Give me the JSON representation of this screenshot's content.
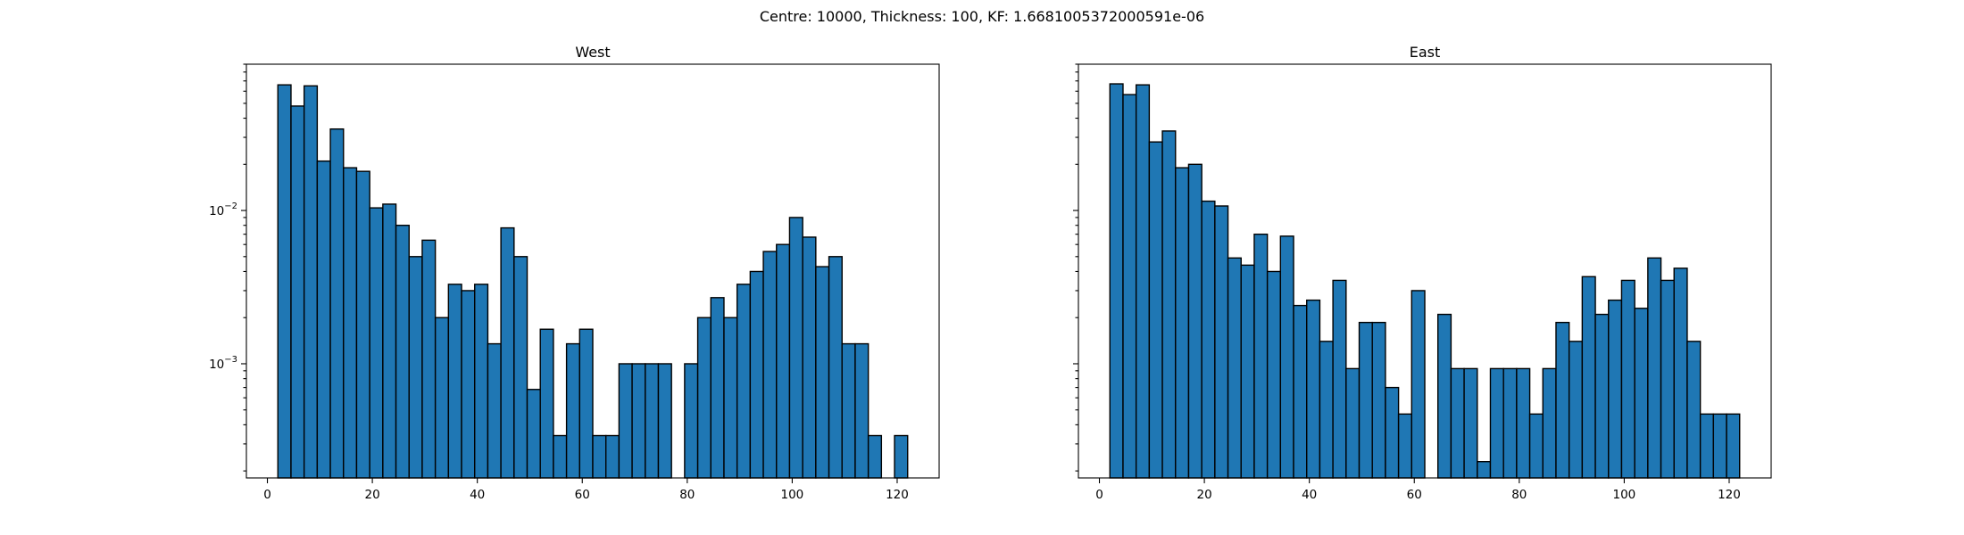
{
  "figure": {
    "suptitle": "Centre: 10000, Thickness: 100, KF: 1.6681005372000591e-06"
  },
  "chart_data": [
    {
      "type": "bar",
      "title": "West",
      "xlabel": "",
      "ylabel": "",
      "yscale": "log",
      "bar_color": "#1f77b4",
      "edge_color": "#000000",
      "bin_width": 2.5,
      "x": [
        3.25,
        5.75,
        8.25,
        10.75,
        13.25,
        15.75,
        18.25,
        20.75,
        23.25,
        25.75,
        28.25,
        30.75,
        33.25,
        35.75,
        38.25,
        40.75,
        43.25,
        45.75,
        48.25,
        50.75,
        53.25,
        55.75,
        58.25,
        60.75,
        63.25,
        65.75,
        68.25,
        70.75,
        73.25,
        75.75,
        78.25,
        80.75,
        83.25,
        85.75,
        88.25,
        90.75,
        93.25,
        95.75,
        98.25,
        100.75,
        103.25,
        105.75,
        108.25,
        110.75,
        113.25,
        115.75,
        118.25,
        120.75
      ],
      "values": [
        0.066,
        0.048,
        0.065,
        0.021,
        0.034,
        0.019,
        0.018,
        0.0104,
        0.011,
        0.008,
        0.005,
        0.0064,
        0.002,
        0.0033,
        0.003,
        0.0033,
        0.00135,
        0.0077,
        0.005,
        0.00068,
        0.00168,
        0.00034,
        0.00135,
        0.00168,
        0.00034,
        0.00034,
        0.001,
        0.001,
        0.001,
        0.001,
        null,
        0.001,
        0.002,
        0.0027,
        0.002,
        0.0033,
        0.004,
        0.0054,
        0.006,
        0.009,
        0.0067,
        0.0043,
        0.005,
        0.00135,
        0.00135,
        0.00034,
        null,
        0.00034
      ],
      "ylim": [
        0.00018,
        0.09
      ],
      "xlim": [
        -4,
        128
      ],
      "xticks": [
        0,
        20,
        40,
        60,
        80,
        100,
        120
      ],
      "xtick_labels": [
        "0",
        "20",
        "40",
        "60",
        "80",
        "100",
        "120"
      ],
      "yticks": [
        0.01,
        0.001
      ],
      "ytick_labels": [
        "10^-2",
        "10^-3"
      ]
    },
    {
      "type": "bar",
      "title": "East",
      "xlabel": "",
      "ylabel": "",
      "yscale": "log",
      "bar_color": "#1f77b4",
      "edge_color": "#000000",
      "bin_width": 2.5,
      "x": [
        3.25,
        5.75,
        8.25,
        10.75,
        13.25,
        15.75,
        18.25,
        20.75,
        23.25,
        25.75,
        28.25,
        30.75,
        33.25,
        35.75,
        38.25,
        40.75,
        43.25,
        45.75,
        48.25,
        50.75,
        53.25,
        55.75,
        58.25,
        60.75,
        63.25,
        65.75,
        68.25,
        70.75,
        73.25,
        75.75,
        78.25,
        80.75,
        83.25,
        85.75,
        88.25,
        90.75,
        93.25,
        95.75,
        98.25,
        100.75,
        103.25,
        105.75,
        108.25,
        110.75,
        113.25,
        115.75,
        118.25,
        120.75
      ],
      "values": [
        0.067,
        0.057,
        0.066,
        0.028,
        0.033,
        0.019,
        0.02,
        0.0115,
        0.0107,
        0.0049,
        0.0044,
        0.007,
        0.004,
        0.0068,
        0.0024,
        0.0026,
        0.0014,
        0.0035,
        0.00093,
        0.00186,
        0.00186,
        0.0007,
        0.00047,
        0.003,
        null,
        0.0021,
        0.00093,
        0.00093,
        0.00023,
        0.00093,
        0.00093,
        0.00093,
        0.00047,
        0.00093,
        0.00186,
        0.0014,
        0.0037,
        0.0021,
        0.0026,
        0.0035,
        0.0023,
        0.0049,
        0.0035,
        0.0042,
        0.0014,
        0.00047,
        0.00047,
        0.00047
      ],
      "ylim": [
        0.00018,
        0.09
      ],
      "xlim": [
        -4,
        128
      ],
      "xticks": [
        0,
        20,
        40,
        60,
        80,
        100,
        120
      ],
      "xtick_labels": [
        "0",
        "20",
        "40",
        "60",
        "80",
        "100",
        "120"
      ],
      "yticks": [
        0.01,
        0.001
      ],
      "ytick_labels": []
    }
  ]
}
